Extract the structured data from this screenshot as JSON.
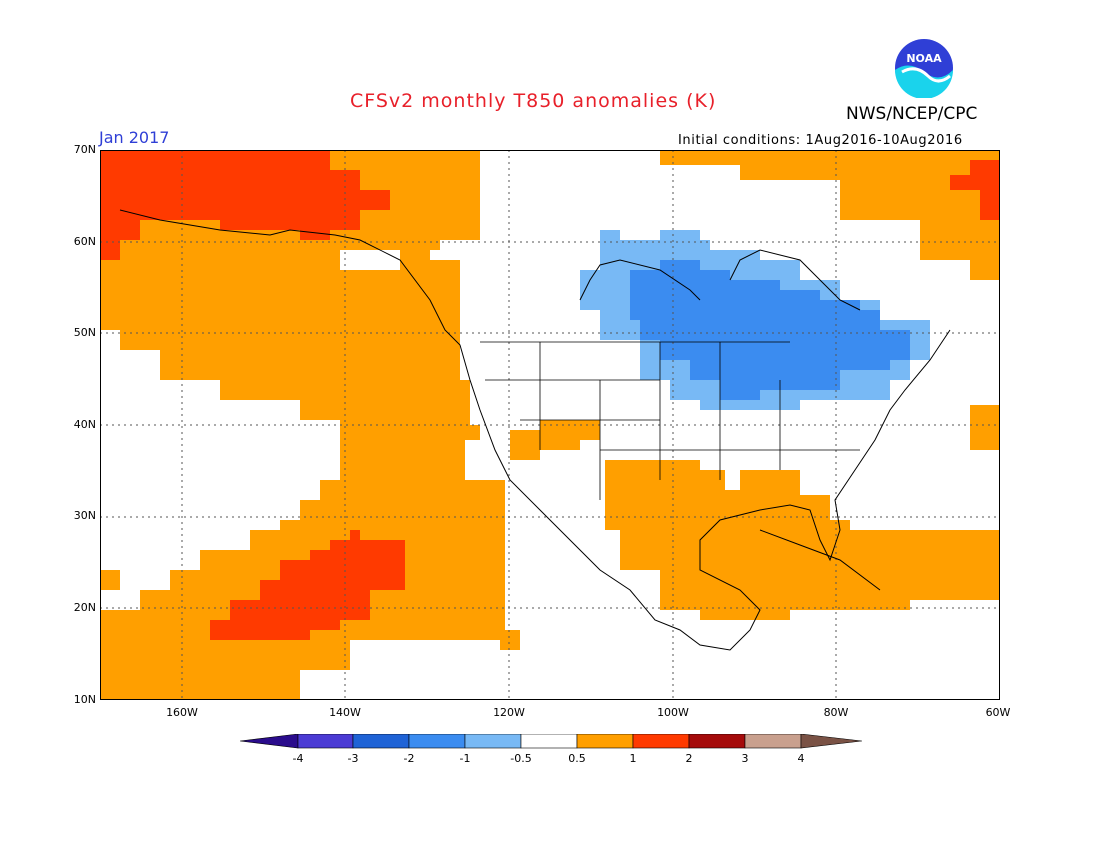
{
  "title": "CFSv2 monthly T850 anomalies (K)",
  "organization": "NWS/NCEP/CPC",
  "logo_text": "NOAA",
  "forecast_month": "Jan 2017",
  "initial_conditions": "Initial conditions: 1Aug2016-10Aug2016",
  "latitude_labels": [
    "70N",
    "60N",
    "50N",
    "40N",
    "30N",
    "20N",
    "10N"
  ],
  "longitude_labels": [
    "160W",
    "140W",
    "120W",
    "100W",
    "80W",
    "60W"
  ],
  "map_extent": {
    "lon_min": -170,
    "lon_max": -60,
    "lat_min": 10,
    "lat_max": 70
  },
  "colorbar": {
    "labels": [
      "-4",
      "-3",
      "-2",
      "-1",
      "-0.5",
      "0.5",
      "1",
      "2",
      "3",
      "4"
    ],
    "colors": [
      "#2a0c8c",
      "#4b3bd4",
      "#1f63d6",
      "#3b8cf0",
      "#78b9f5",
      "#ffffff",
      "#ff9f00",
      "#ff3a00",
      "#a50b0b",
      "#c9a08e",
      "#7a5245"
    ]
  }
}
